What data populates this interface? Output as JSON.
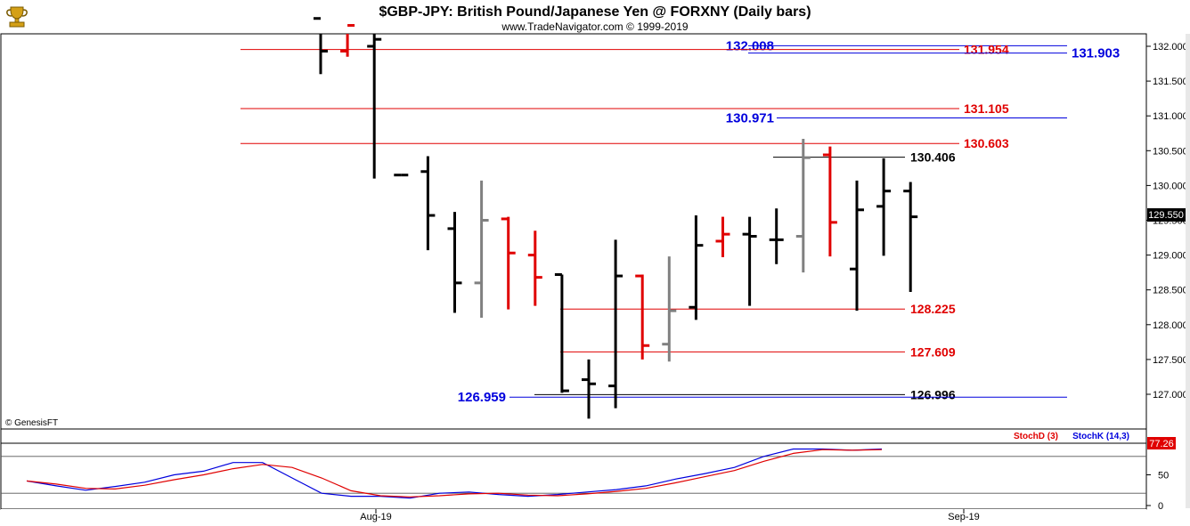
{
  "header": {
    "title": "$GBP-JPY:  British Pound/Japanese Yen @ FORXNY  (Daily bars)",
    "subtitle": "www.TradeNavigator.com © 1999-2019",
    "logo_icon": "trophy-logo-icon"
  },
  "chart_data": [
    {
      "type": "ohlc",
      "y_range": [
        126.7,
        132.2
      ],
      "y_ticks": [
        "132.000",
        "131.500",
        "131.000",
        "130.500",
        "130.000",
        "129.500",
        "129.000",
        "128.500",
        "128.000",
        "127.500",
        "127.000"
      ],
      "last_price_label": "129.550",
      "x_labels": [
        "Aug-19",
        "Sep-19"
      ],
      "credit": "© GenesisFT",
      "bars": [
        {
          "o": 132.4,
          "h": 132.6,
          "l": 131.6,
          "c": 131.93,
          "color": "#000000"
        },
        {
          "o": 131.93,
          "h": 132.4,
          "l": 131.85,
          "c": 132.3,
          "color": "#e00000"
        },
        {
          "o": 132.0,
          "h": 132.3,
          "l": 130.1,
          "c": 132.1,
          "color": "#000000"
        },
        {
          "o": 130.15,
          "h": 130.15,
          "l": 130.15,
          "c": 130.15,
          "color": "#000000"
        },
        {
          "o": 130.2,
          "h": 130.42,
          "l": 129.07,
          "c": 129.57,
          "color": "#000000"
        },
        {
          "o": 129.38,
          "h": 129.62,
          "l": 128.17,
          "c": 128.6,
          "color": "#000000"
        },
        {
          "o": 128.6,
          "h": 130.07,
          "l": 128.1,
          "c": 129.5,
          "color": "#808080"
        },
        {
          "o": 129.52,
          "h": 129.55,
          "l": 128.22,
          "c": 129.03,
          "color": "#e00000"
        },
        {
          "o": 129.0,
          "h": 129.35,
          "l": 128.27,
          "c": 128.68,
          "color": "#e00000"
        },
        {
          "o": 128.72,
          "h": 128.72,
          "l": 127.02,
          "c": 127.05,
          "color": "#000000"
        },
        {
          "o": 127.21,
          "h": 127.5,
          "l": 126.65,
          "c": 127.15,
          "color": "#000000"
        },
        {
          "o": 127.12,
          "h": 129.22,
          "l": 126.8,
          "c": 128.7,
          "color": "#000000"
        },
        {
          "o": 128.7,
          "h": 128.72,
          "l": 127.5,
          "c": 127.7,
          "color": "#e00000"
        },
        {
          "o": 127.72,
          "h": 128.98,
          "l": 127.47,
          "c": 128.2,
          "color": "#808080"
        },
        {
          "o": 128.25,
          "h": 129.57,
          "l": 128.07,
          "c": 129.14,
          "color": "#000000"
        },
        {
          "o": 129.2,
          "h": 129.55,
          "l": 128.97,
          "c": 129.3,
          "color": "#e00000"
        },
        {
          "o": 129.3,
          "h": 129.55,
          "l": 128.27,
          "c": 129.27,
          "color": "#000000"
        },
        {
          "o": 129.22,
          "h": 129.67,
          "l": 128.87,
          "c": 129.22,
          "color": "#000000"
        },
        {
          "o": 129.27,
          "h": 130.67,
          "l": 128.75,
          "c": 130.4,
          "color": "#808080"
        },
        {
          "o": 130.44,
          "h": 130.56,
          "l": 128.98,
          "c": 129.47,
          "color": "#e00000"
        },
        {
          "o": 128.8,
          "h": 130.07,
          "l": 128.2,
          "c": 129.65,
          "color": "#000000"
        },
        {
          "o": 129.7,
          "h": 130.39,
          "l": 128.99,
          "c": 129.92,
          "color": "#000000"
        },
        {
          "o": 129.92,
          "h": 130.05,
          "l": 128.47,
          "c": 129.55,
          "color": "#000000"
        }
      ],
      "levels": [
        {
          "value": 132.008,
          "label": "132.008",
          "color": "#0000dd",
          "label_side": "left"
        },
        {
          "value": 131.954,
          "label": "131.954",
          "color": "#e00000",
          "label_side": "right"
        },
        {
          "value": 131.903,
          "label": "131.903",
          "color": "#0000dd",
          "label_side": "far-right"
        },
        {
          "value": 131.105,
          "label": "131.105",
          "color": "#e00000",
          "label_side": "right"
        },
        {
          "value": 130.971,
          "label": "130.971",
          "color": "#0000dd",
          "label_side": "left"
        },
        {
          "value": 130.603,
          "label": "130.603",
          "color": "#e00000",
          "label_side": "right"
        },
        {
          "value": 130.406,
          "label": "130.406",
          "color": "#000000",
          "label_side": "right"
        },
        {
          "value": 128.225,
          "label": "128.225",
          "color": "#e00000",
          "label_side": "right"
        },
        {
          "value": 127.609,
          "label": "127.609",
          "color": "#e00000",
          "label_side": "right"
        },
        {
          "value": 126.996,
          "label": "126.996",
          "color": "#000000",
          "label_side": "right"
        },
        {
          "value": 126.959,
          "label": "126.959",
          "color": "#0000dd",
          "label_side": "left"
        }
      ]
    },
    {
      "type": "line",
      "y_range": [
        0,
        100
      ],
      "y_ticks": [
        "50",
        "0"
      ],
      "last_value_label": "77.26",
      "legend": [
        {
          "name": "StochD (3)",
          "color": "#e00000"
        },
        {
          "name": "StochK (14,3)",
          "color": "#0000dd"
        }
      ],
      "series": [
        {
          "name": "StochK (14,3)",
          "color": "#0000dd",
          "values": [
            40,
            32,
            25,
            31,
            38,
            50,
            56,
            70,
            70,
            45,
            20,
            15,
            15,
            12,
            20,
            22,
            18,
            15,
            18,
            22,
            26,
            32,
            43,
            52,
            62,
            80,
            92,
            92,
            90,
            92
          ]
        },
        {
          "name": "StochD (3)",
          "color": "#e00000",
          "values": [
            40,
            35,
            28,
            27,
            33,
            42,
            50,
            60,
            67,
            62,
            45,
            24,
            16,
            14,
            16,
            19,
            20,
            17,
            16,
            19,
            23,
            28,
            37,
            47,
            57,
            72,
            85,
            91,
            90,
            91
          ]
        }
      ]
    }
  ]
}
